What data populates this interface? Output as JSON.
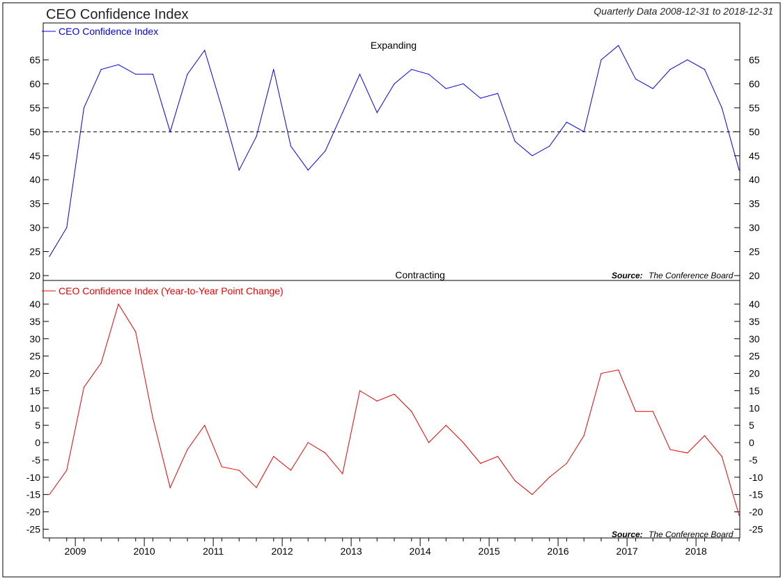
{
  "title": "CEO Confidence Index",
  "subtitle": "Quarterly Data 2008-12-31 to 2018-12-31",
  "source_label": "Source:",
  "source_text": "The Conference Board",
  "colors": {
    "top_series": "#0000ee",
    "bottom_series": "#ee0000",
    "reference_line": "#000000"
  },
  "chart_data": [
    {
      "type": "line",
      "panel": "top",
      "legend": "CEO Confidence Index",
      "annotations": {
        "upper": "Expanding",
        "lower": "Contracting"
      },
      "reference_line": 50,
      "ylim": [
        19,
        70
      ],
      "yticks": [
        20,
        25,
        30,
        35,
        40,
        45,
        50,
        55,
        60,
        65
      ],
      "grid": false,
      "legend_position": "top-left",
      "series": [
        {
          "name": "CEO Confidence Index",
          "values": [
            24,
            30,
            55,
            63,
            64,
            62,
            62,
            50,
            62,
            67,
            55,
            42,
            49,
            63,
            47,
            42,
            46,
            54,
            62,
            54,
            60,
            63,
            62,
            59,
            60,
            57,
            58,
            48,
            45,
            47,
            52,
            50,
            65,
            68,
            61,
            59,
            63,
            65,
            63,
            55,
            42
          ]
        }
      ]
    },
    {
      "type": "line",
      "panel": "bottom",
      "legend": "CEO Confidence Index (Year-to-Year Point Change)",
      "ylim": [
        -28,
        43
      ],
      "yticks": [
        -25,
        -20,
        -15,
        -10,
        -5,
        0,
        5,
        10,
        15,
        20,
        25,
        30,
        35,
        40
      ],
      "grid": false,
      "legend_position": "top-left",
      "series": [
        {
          "name": "CEO Confidence Index (Year-to-Year Point Change)",
          "values": [
            -15,
            -8,
            16,
            23,
            40,
            32,
            7,
            -13,
            -2,
            5,
            -7,
            -8,
            -13,
            -4,
            -8,
            0,
            -3,
            -9,
            15,
            12,
            14,
            9,
            0,
            5,
            0,
            -6,
            -4,
            -11,
            -15,
            -10,
            -6,
            2,
            20,
            21,
            9,
            9,
            -2,
            -3,
            2,
            -4,
            -21
          ]
        }
      ],
      "x_tick_labels": [
        "2009",
        "2010",
        "2011",
        "2012",
        "2013",
        "2014",
        "2015",
        "2016",
        "2017",
        "2018"
      ]
    }
  ]
}
